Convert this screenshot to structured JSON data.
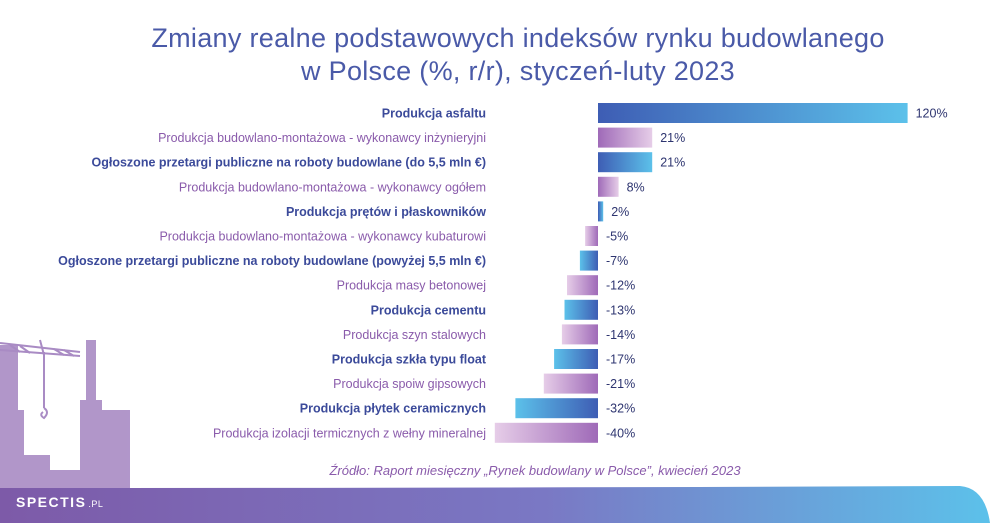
{
  "chart_data": {
    "type": "bar",
    "orientation": "horizontal",
    "title": "Zmiany realne podstawowych indeksów rynku budowlanego w Polsce (%, r/r), styczeń-luty 2023",
    "title_lines": [
      "Zmiany realne podstawowych indeksów rynku budowlanego",
      "w Polsce (%, r/r), styczeń-luty 2023"
    ],
    "categories": [
      "Produkcja asfaltu",
      "Produkcja budowlano-montażowa - wykonawcy inżynieryjni",
      "Ogłoszone przetargi publiczne na roboty budowlane (do 5,5 mln €)",
      "Produkcja budowlano-montażowa - wykonawcy ogółem",
      "Produkcja prętów i płaskowników",
      "Produkcja budowlano-montażowa - wykonawcy kubaturowi",
      "Ogłoszone przetargi publiczne na roboty budowlane (powyżej 5,5 mln €)",
      "Produkcja masy betonowej",
      "Produkcja cementu",
      "Produkcja szyn stalowych",
      "Produkcja szkła typu float",
      "Produkcja spoiw gipsowych",
      "Produkcja płytek ceramicznych",
      "Produkcja izolacji termicznych z wełny mineralnej"
    ],
    "values": [
      120,
      21,
      21,
      8,
      2,
      -5,
      -7,
      -12,
      -13,
      -14,
      -17,
      -21,
      -32,
      -40
    ],
    "value_labels": [
      "120%",
      "21%",
      "21%",
      "8%",
      "2%",
      "-5%",
      "-7%",
      "-12%",
      "-13%",
      "-14%",
      "-17%",
      "-21%",
      "-32%",
      "-40%"
    ],
    "xlim": [
      -40,
      120
    ],
    "grid": false,
    "legend": "none"
  },
  "source": "Źródło: Raport miesięczny „Rynek budowlany w Polsce”, kwiecień 2023",
  "logo": {
    "name": "SPECTIS",
    "suffix": ".PL"
  },
  "colors": {
    "title": "#4a5aa8",
    "label_blue": "#3b4a9a",
    "label_purple": "#8a5bab",
    "blue_bar_start": "#3e5db4",
    "blue_bar_end": "#5cc1ea",
    "purple_bar_start": "#9f6ab8",
    "purple_bar_end": "#e6cde8"
  }
}
